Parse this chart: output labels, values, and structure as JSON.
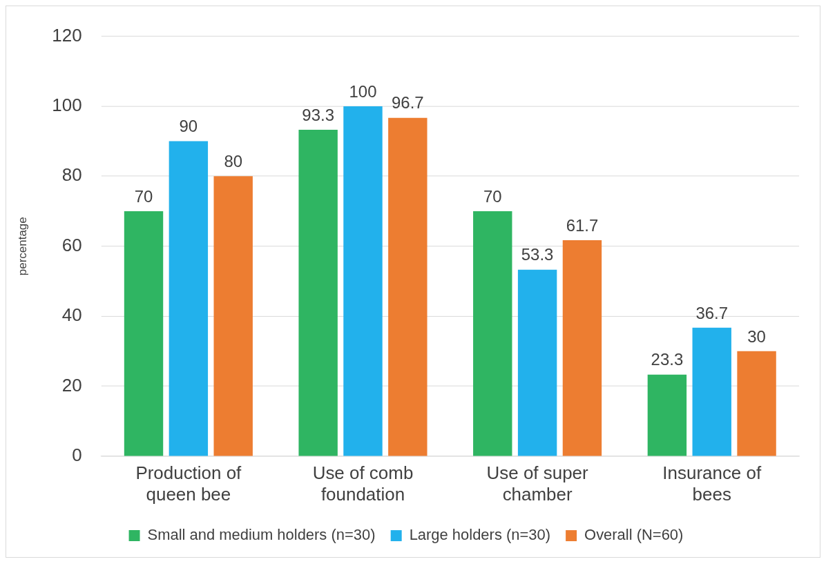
{
  "chart_data": {
    "type": "bar",
    "ylabel": "percentage",
    "categories": [
      "Production of queen bee",
      "Use of comb foundation",
      "Use of super chamber",
      "Insurance of bees"
    ],
    "series": [
      {
        "name": "Small and medium holders (n=30)",
        "color": "#2fb562",
        "values": [
          70,
          93.3,
          70,
          23.3
        ]
      },
      {
        "name": "Large holders (n=30)",
        "color": "#22b1ec",
        "values": [
          90,
          100,
          53.3,
          36.7
        ]
      },
      {
        "name": "Overall (N=60)",
        "color": "#ed7d31",
        "values": [
          80,
          96.7,
          61.7,
          30
        ]
      }
    ],
    "ylim": [
      0,
      120
    ],
    "yticks": [
      0,
      20,
      40,
      60,
      80,
      100,
      120
    ],
    "grid": "y",
    "legend": "bottom",
    "data_labels": true
  }
}
